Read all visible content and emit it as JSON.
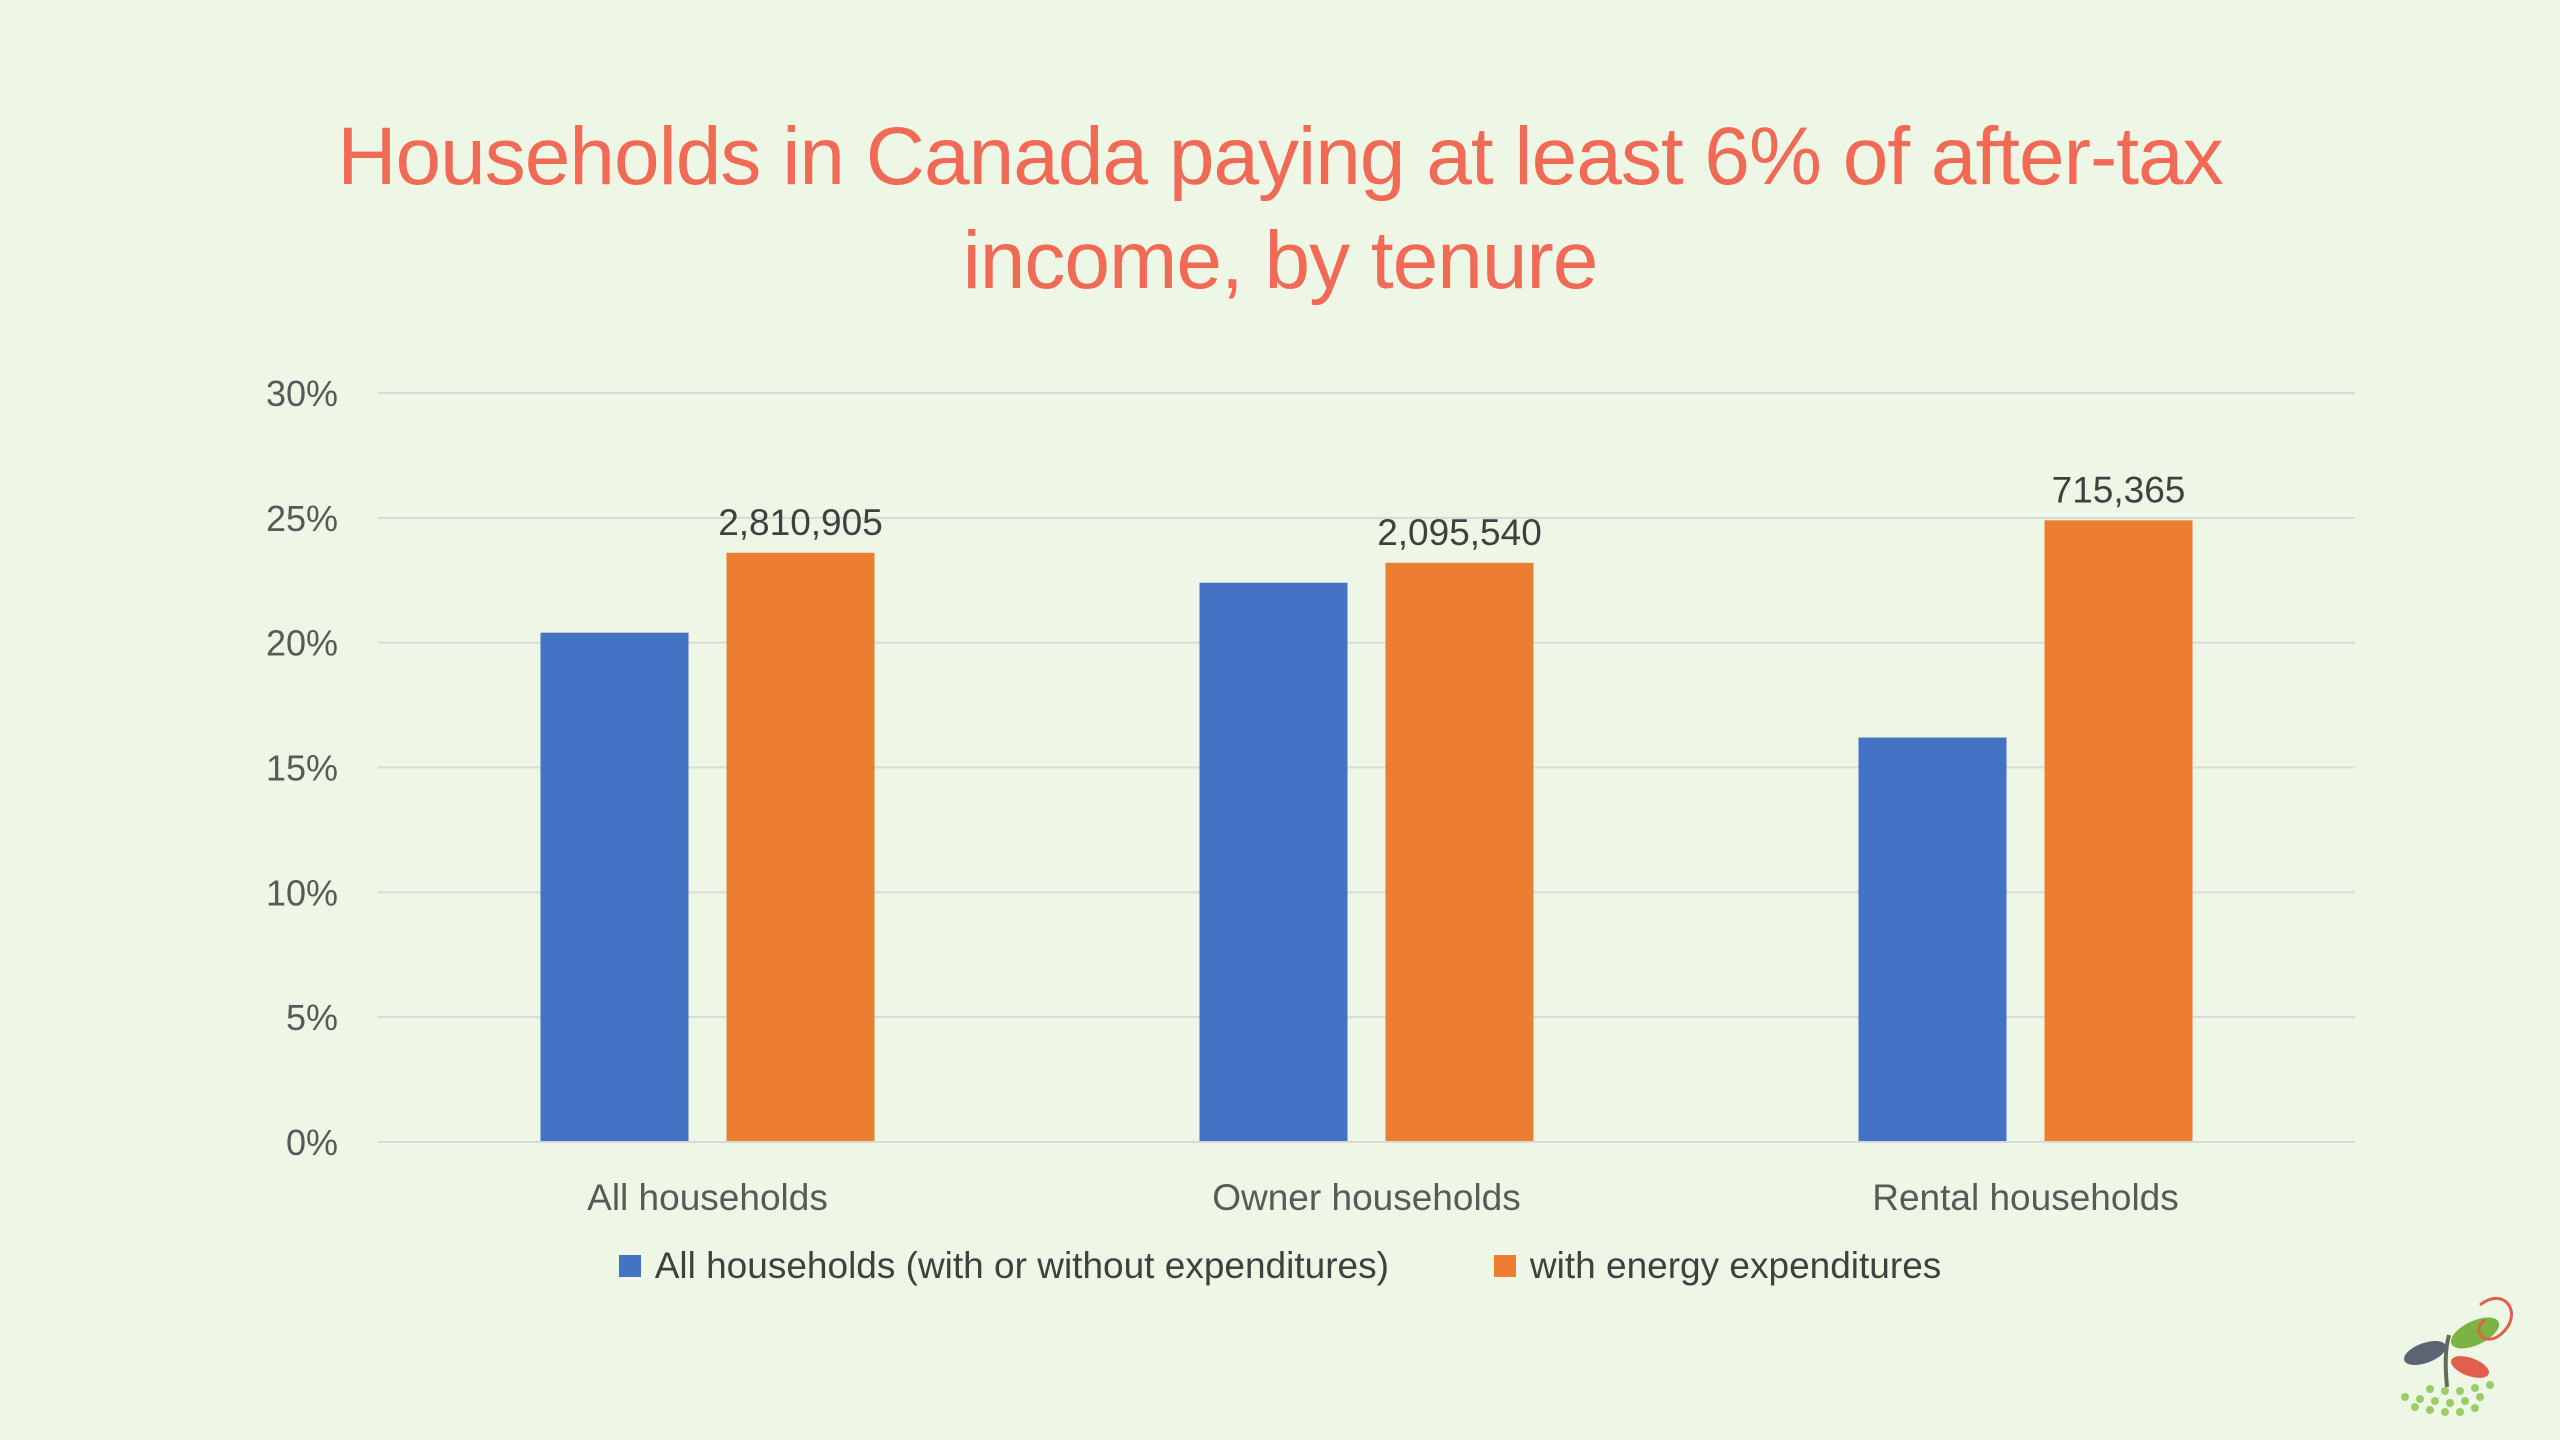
{
  "chart_data": {
    "type": "bar",
    "title": "Households in Canada paying at least 6% of after-tax income, by tenure",
    "title_lines": [
      "Households in Canada paying at least 6% of after-tax",
      "income, by tenure"
    ],
    "categories": [
      "All households",
      "Owner households",
      "Rental households"
    ],
    "series": [
      {
        "name": "All households (with or without expenditures)",
        "color": "#4472c4",
        "values": [
          20.4,
          22.4,
          16.2
        ]
      },
      {
        "name": "with energy expenditures",
        "color": "#ed7d31",
        "values": [
          23.6,
          23.2,
          24.9
        ],
        "data_labels": [
          "2,810,905",
          "2,095,540",
          "715,365"
        ]
      }
    ],
    "y_ticks": [
      "0%",
      "5%",
      "10%",
      "15%",
      "20%",
      "25%",
      "30%"
    ],
    "ylim": [
      0,
      30
    ],
    "grid": true,
    "legend_position": "bottom"
  },
  "colors": {
    "title": "#f06a55",
    "background": "#eef7e6",
    "gridline": "#d9d9d9",
    "axis_text": "#595959"
  }
}
